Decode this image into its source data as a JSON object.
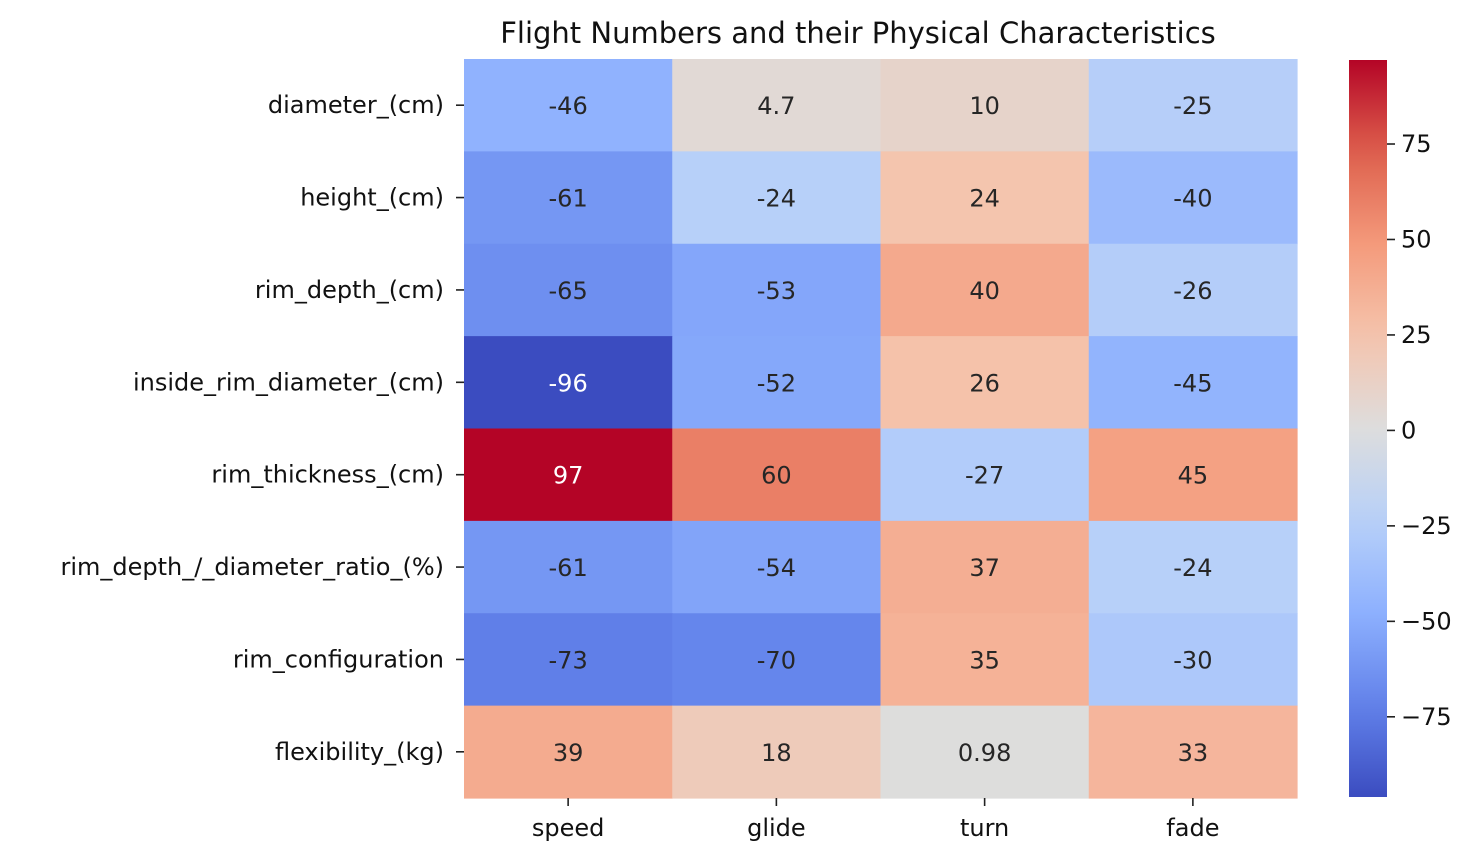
{
  "chart_data": {
    "type": "heatmap",
    "title": "Flight Numbers and their Physical Characteristics",
    "xlabel": "",
    "ylabel": "",
    "columns": [
      "speed",
      "glide",
      "turn",
      "fade"
    ],
    "rows": [
      "diameter_(cm)",
      "height_(cm)",
      "rim_depth_(cm)",
      "inside_rim_diameter_(cm)",
      "rim_thickness_(cm)",
      "rim_depth_/_diameter_ratio_(%)",
      "rim_configuration",
      "flexibility_(kg)"
    ],
    "values": [
      [
        -46,
        4.7,
        10,
        -25
      ],
      [
        -61,
        -24,
        24,
        -40
      ],
      [
        -65,
        -53,
        40,
        -26
      ],
      [
        -96,
        -52,
        26,
        -45
      ],
      [
        97,
        60,
        -27,
        45
      ],
      [
        -61,
        -54,
        37,
        -24
      ],
      [
        -73,
        -70,
        35,
        -30
      ],
      [
        39,
        18,
        0.98,
        33
      ]
    ],
    "colormap": "coolwarm",
    "vmin": -96,
    "vmax": 97,
    "colorbar_ticks": [
      75,
      50,
      25,
      0,
      -25,
      -50,
      -75
    ],
    "colorbar_tick_labels": [
      "75",
      "50",
      "25",
      "0",
      "−25",
      "−50",
      "−75"
    ],
    "grid": false,
    "legend": "colorbar-right"
  }
}
